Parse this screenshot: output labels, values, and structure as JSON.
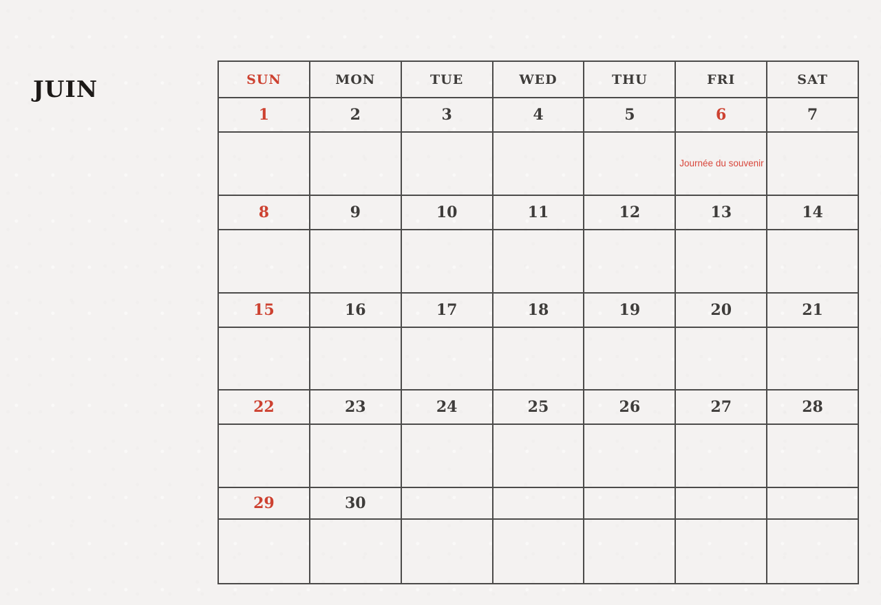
{
  "page": {
    "title": "JUIN",
    "colors": {
      "background": "#f4f2f1",
      "grid_line": "#4b4a49",
      "text": "#3e3c3a",
      "accent_red": "#cd4130",
      "event_red": "#d8463b",
      "title_black": "#1c1917"
    }
  },
  "calendar": {
    "day_headers": [
      {
        "label": "SUN",
        "accent": true
      },
      {
        "label": "MON",
        "accent": false
      },
      {
        "label": "TUE",
        "accent": false
      },
      {
        "label": "WED",
        "accent": false
      },
      {
        "label": "THU",
        "accent": false
      },
      {
        "label": "FRI",
        "accent": false
      },
      {
        "label": "SAT",
        "accent": false
      }
    ],
    "weeks": [
      {
        "days": [
          {
            "date": "1",
            "accent": true,
            "event": ""
          },
          {
            "date": "2",
            "accent": false,
            "event": ""
          },
          {
            "date": "3",
            "accent": false,
            "event": ""
          },
          {
            "date": "4",
            "accent": false,
            "event": ""
          },
          {
            "date": "5",
            "accent": false,
            "event": ""
          },
          {
            "date": "6",
            "accent": true,
            "event": "Journée du souvenir"
          },
          {
            "date": "7",
            "accent": false,
            "event": ""
          }
        ]
      },
      {
        "days": [
          {
            "date": "8",
            "accent": true,
            "event": ""
          },
          {
            "date": "9",
            "accent": false,
            "event": ""
          },
          {
            "date": "10",
            "accent": false,
            "event": ""
          },
          {
            "date": "11",
            "accent": false,
            "event": ""
          },
          {
            "date": "12",
            "accent": false,
            "event": ""
          },
          {
            "date": "13",
            "accent": false,
            "event": ""
          },
          {
            "date": "14",
            "accent": false,
            "event": ""
          }
        ]
      },
      {
        "days": [
          {
            "date": "15",
            "accent": true,
            "event": ""
          },
          {
            "date": "16",
            "accent": false,
            "event": ""
          },
          {
            "date": "17",
            "accent": false,
            "event": ""
          },
          {
            "date": "18",
            "accent": false,
            "event": ""
          },
          {
            "date": "19",
            "accent": false,
            "event": ""
          },
          {
            "date": "20",
            "accent": false,
            "event": ""
          },
          {
            "date": "21",
            "accent": false,
            "event": ""
          }
        ]
      },
      {
        "days": [
          {
            "date": "22",
            "accent": true,
            "event": ""
          },
          {
            "date": "23",
            "accent": false,
            "event": ""
          },
          {
            "date": "24",
            "accent": false,
            "event": ""
          },
          {
            "date": "25",
            "accent": false,
            "event": ""
          },
          {
            "date": "26",
            "accent": false,
            "event": ""
          },
          {
            "date": "27",
            "accent": false,
            "event": ""
          },
          {
            "date": "28",
            "accent": false,
            "event": ""
          }
        ]
      },
      {
        "days": [
          {
            "date": "29",
            "accent": true,
            "event": ""
          },
          {
            "date": "30",
            "accent": false,
            "event": ""
          },
          {
            "date": "",
            "accent": false,
            "event": ""
          },
          {
            "date": "",
            "accent": false,
            "event": ""
          },
          {
            "date": "",
            "accent": false,
            "event": ""
          },
          {
            "date": "",
            "accent": false,
            "event": ""
          },
          {
            "date": "",
            "accent": false,
            "event": ""
          }
        ]
      }
    ]
  }
}
